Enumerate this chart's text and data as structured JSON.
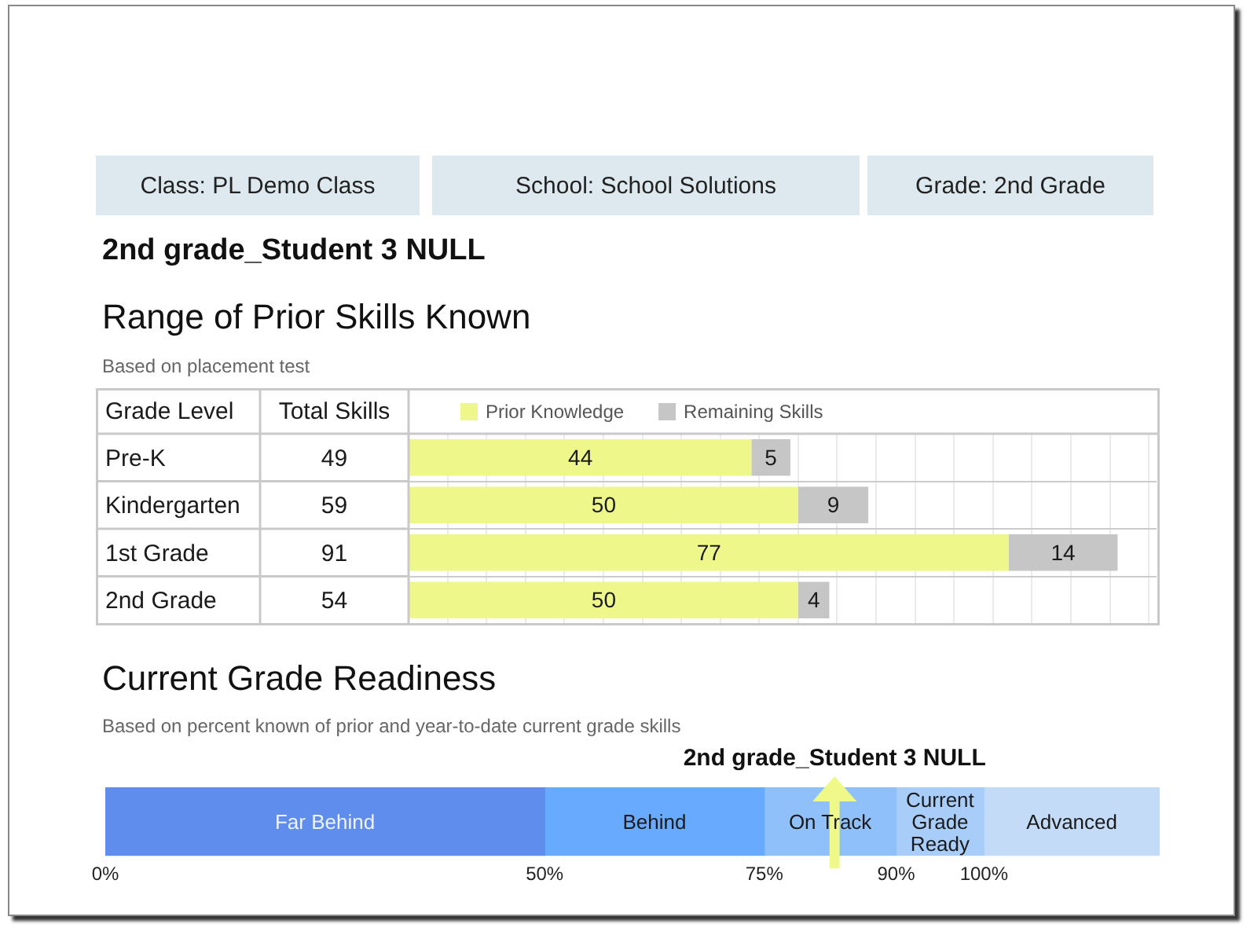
{
  "chart_data": [
    {
      "type": "bar",
      "orientation": "horizontal",
      "stacked": true,
      "title": "Range of Prior Skills Known",
      "subtitle": "Based on placement test",
      "ylabel": "Grade Level",
      "annotations": [
        "Class: PL Demo Class",
        "School: School Solutions",
        "Grade: 2nd Grade",
        "2nd grade_Student 3 NULL",
        "Total Skills"
      ],
      "categories": [
        "Pre-K",
        "Kindergarten",
        "1st Grade",
        "2nd Grade"
      ],
      "series": [
        {
          "name": "Prior Knowledge",
          "color": "#eef88a",
          "values": [
            44,
            50,
            77,
            50
          ]
        },
        {
          "name": "Remaining Skills",
          "color": "#c6c6c6",
          "values": [
            5,
            9,
            14,
            4
          ]
        }
      ],
      "totals": [
        "49",
        "59",
        "91",
        "54"
      ],
      "data_labels": true,
      "xlim": [
        0,
        96
      ],
      "xticks": [
        {
          "value": 0,
          "label": null
        },
        {
          "value": 5,
          "label": null
        },
        {
          "value": 10,
          "label": null
        },
        {
          "value": 15,
          "label": null
        },
        {
          "value": 20,
          "label": null
        },
        {
          "value": 25,
          "label": null
        },
        {
          "value": 30,
          "label": null
        },
        {
          "value": 35,
          "label": null
        },
        {
          "value": 40,
          "label": null
        },
        {
          "value": 45,
          "label": null
        },
        {
          "value": 50,
          "label": null
        },
        {
          "value": 55,
          "label": null
        },
        {
          "value": 60,
          "label": null
        },
        {
          "value": 65,
          "label": null
        },
        {
          "value": 70,
          "label": null
        },
        {
          "value": 75,
          "label": null
        },
        {
          "value": 80,
          "label": null
        },
        {
          "value": 85,
          "label": null
        },
        {
          "value": 90,
          "label": null
        },
        {
          "value": 95,
          "label": null
        }
      ],
      "tick_labels": "y",
      "grid": true,
      "legend": "top"
    },
    {
      "type": "bar",
      "orientation": "horizontal",
      "stacked": true,
      "title": "Current Grade Readiness",
      "subtitle": "Based on percent known of prior and year-to-date current grade skills",
      "categories": [
        null
      ],
      "series": [
        {
          "name": "Far Behind",
          "color": "#5e8ded",
          "values": [
            50
          ]
        },
        {
          "name": "Behind",
          "color": "#68aafd",
          "values": [
            25
          ]
        },
        {
          "name": "On Track",
          "color": "#8fc0fa",
          "values": [
            15
          ]
        },
        {
          "name": "Current Grade Ready",
          "color": "#a8cdf8",
          "values": [
            10
          ]
        },
        {
          "name": "Advanced",
          "color": "#c4dbf7",
          "values": [
            20
          ]
        }
      ],
      "xlim": [
        0,
        120
      ],
      "xticks": [
        {
          "value": 0,
          "label": "0%"
        },
        {
          "value": 50,
          "label": "50%"
        },
        {
          "value": 75,
          "label": "75%"
        },
        {
          "value": 90,
          "label": "90%"
        },
        {
          "value": 100,
          "label": "100%"
        }
      ],
      "tick_labels": "x",
      "ref_lines": [
        {
          "axis": "x",
          "value": 83,
          "label": "2nd grade_Student 3 NULL",
          "color": "#eef98a"
        }
      ]
    }
  ]
}
